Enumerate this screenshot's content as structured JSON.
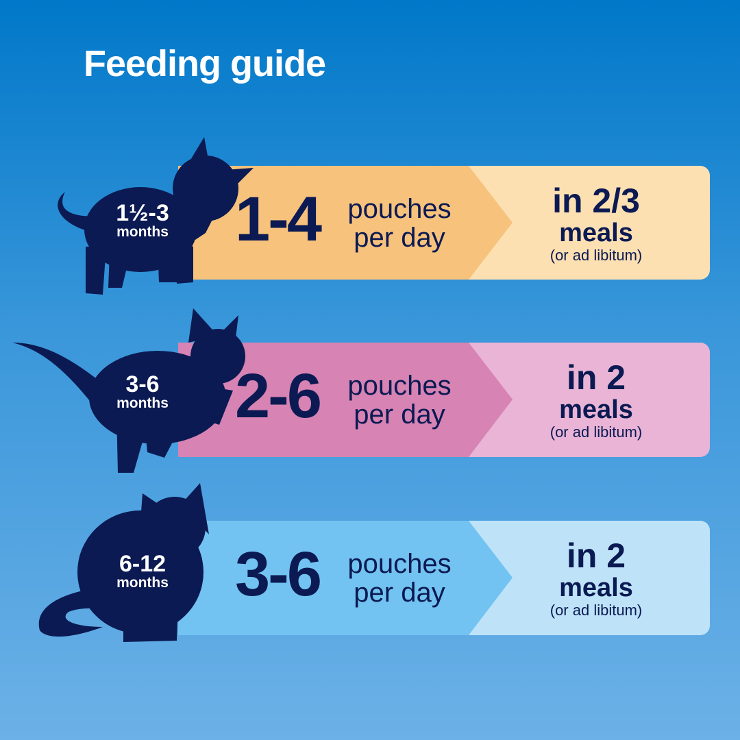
{
  "title": "Feeding guide",
  "colors": {
    "navy": "#0b1a52",
    "background_top": "#0178c9",
    "background_bottom": "#6cb1e7"
  },
  "rows": [
    {
      "age": "1½-3",
      "age_unit": "months",
      "amount": "1-4",
      "unit_line1": "pouches",
      "unit_line2": "per day",
      "meals_line1": "in 2/3",
      "meals_line2": "meals",
      "meals_note": "(or ad libitum)",
      "color_dark": "#f7c27c",
      "color_light": "#fde0b2",
      "icon": "kitten-standing-silhouette"
    },
    {
      "age": "3-6",
      "age_unit": "months",
      "amount": "2-6",
      "unit_line1": "pouches",
      "unit_line2": "per day",
      "meals_line1": "in 2",
      "meals_line2": "meals",
      "meals_note": "(or ad libitum)",
      "color_dark": "#d783b3",
      "color_light": "#e9b4d6",
      "icon": "kitten-leaping-silhouette"
    },
    {
      "age": "6-12",
      "age_unit": "months",
      "amount": "3-6",
      "unit_line1": "pouches",
      "unit_line2": "per day",
      "meals_line1": "in 2",
      "meals_line2": "meals",
      "meals_note": "(or ad libitum)",
      "color_dark": "#72c3f1",
      "color_light": "#bee3f9",
      "icon": "cat-sitting-silhouette"
    }
  ]
}
